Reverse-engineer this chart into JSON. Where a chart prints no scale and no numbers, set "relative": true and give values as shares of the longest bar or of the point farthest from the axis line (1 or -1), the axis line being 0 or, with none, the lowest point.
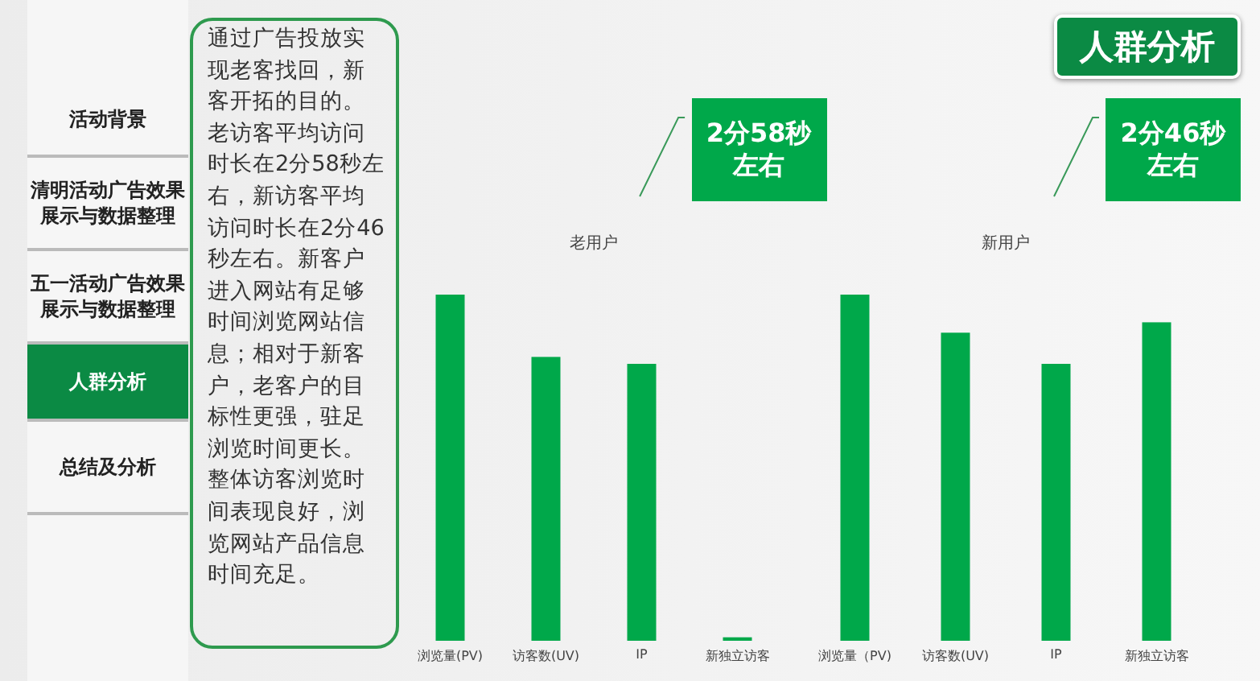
{
  "chart_data": [
    {
      "type": "other",
      "title": "人群分析",
      "annotations": [
        "活动背景",
        "清明活动广告效果展示与数据整理",
        "五一活动广告效果展示与数据整理",
        "人群分析",
        "总结及分析",
        "通过广告投放实现老客找回，新客开拓的目的。老访客平均访问时长在2分58秒左右，新访客平均访问时长在2分46秒左右。新客户进入网站有足够时间浏览网站信息；相对于新客户，老客户的目标性更强，驻足浏览时间更长。整体访客浏览时间表现良好，浏览网站产品信息时间充足。"
      ]
    },
    {
      "type": "bar",
      "relative": true,
      "title": "老用户",
      "categories": [
        "浏览量(PV)",
        "访客数(UV)",
        "IP",
        "新独立访客"
      ],
      "values": [
        1,
        0.82,
        0.8,
        0.01
      ],
      "color": "#00a84a",
      "annotations": [
        "2分58秒左右"
      ]
    },
    {
      "type": "bar",
      "relative": true,
      "title": "新用户",
      "categories": [
        "浏览量（PV)",
        "访客数(UV)",
        "IP",
        "新独立访客"
      ],
      "values": [
        1,
        0.89,
        0.8,
        0.92
      ],
      "color": "#00a84a",
      "annotations": [
        "2分46秒左右"
      ]
    }
  ]
}
